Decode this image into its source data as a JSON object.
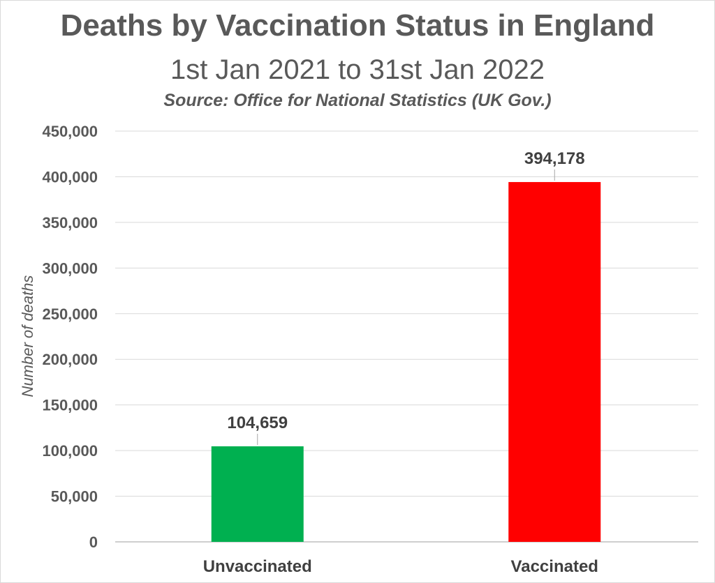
{
  "chart_data": {
    "type": "bar",
    "title": "Deaths by Vaccination Status in England",
    "subtitle": "1st Jan 2021 to 31st Jan 2022",
    "source": "Source:  Office for National Statistics (UK Gov.)",
    "xlabel": "",
    "ylabel": "Number of deaths",
    "categories": [
      "Unvaccinated",
      "Vaccinated"
    ],
    "values": [
      104659,
      394178
    ],
    "data_labels": [
      "104,659",
      "394,178"
    ],
    "colors": [
      "#00b050",
      "#ff0000"
    ],
    "ylim": [
      0,
      450000
    ],
    "yticks": [
      0,
      50000,
      100000,
      150000,
      200000,
      250000,
      300000,
      350000,
      400000,
      450000
    ],
    "ytick_labels": [
      "0",
      "50,000",
      "100,000",
      "150,000",
      "200,000",
      "250,000",
      "300,000",
      "350,000",
      "400,000",
      "450,000"
    ],
    "grid": true,
    "legend": "none"
  }
}
